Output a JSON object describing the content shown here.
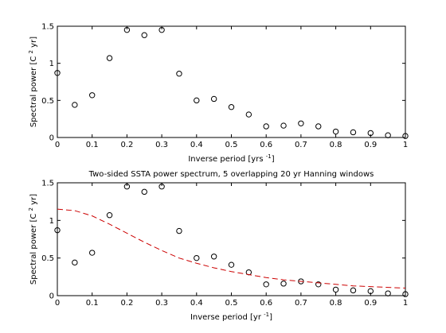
{
  "chart_data": [
    {
      "type": "scatter",
      "title": "",
      "xlabel": "Inverse period [yrs",
      "xlabel_sup": "-1",
      "xlabel_end": "]",
      "ylabel": "Spectral power [C",
      "ylabel_sup": "2",
      "ylabel_end": " yr]",
      "xlim": [
        0,
        1
      ],
      "ylim": [
        0,
        1.5
      ],
      "xticks": [
        0,
        0.1,
        0.2,
        0.3,
        0.4,
        0.5,
        0.6,
        0.7,
        0.8,
        0.9,
        1
      ],
      "xtick_labels": [
        "0",
        "0.1",
        "0.2",
        "0.3",
        "0.4",
        "0.5",
        "0.6",
        "0.7",
        "0.8",
        "0.9",
        "1"
      ],
      "yticks": [
        0,
        0.5,
        1,
        1.5
      ],
      "ytick_labels": [
        "0",
        "0.5",
        "1",
        "1.5"
      ],
      "grid": false,
      "series": [
        {
          "marker": "circle",
          "x": [
            0,
            0.05,
            0.1,
            0.15,
            0.2,
            0.25,
            0.3,
            0.35,
            0.4,
            0.45,
            0.5,
            0.55,
            0.6,
            0.65,
            0.7,
            0.75,
            0.8,
            0.85,
            0.9,
            0.95,
            1
          ],
          "y": [
            0.87,
            0.44,
            0.57,
            1.07,
            1.45,
            1.38,
            1.45,
            0.86,
            0.5,
            0.52,
            0.41,
            0.31,
            0.15,
            0.16,
            0.19,
            0.15,
            0.08,
            0.07,
            0.06,
            0.03,
            0.02
          ]
        }
      ]
    },
    {
      "type": "scatter",
      "title": "Two-sided SSTA power spectrum, 5 overlapping 20 yr Hanning windows",
      "xlabel": "Inverse period [yr",
      "xlabel_sup": "-1",
      "xlabel_end": "]",
      "ylabel": "Spectral power [C",
      "ylabel_sup": "2",
      "ylabel_end": " yr]",
      "xlim": [
        0,
        1
      ],
      "ylim": [
        0,
        1.5
      ],
      "xticks": [
        0,
        0.1,
        0.2,
        0.3,
        0.4,
        0.5,
        0.6,
        0.7,
        0.8,
        0.9,
        1
      ],
      "xtick_labels": [
        "0",
        "0.1",
        "0.2",
        "0.3",
        "0.4",
        "0.5",
        "0.6",
        "0.7",
        "0.8",
        "0.9",
        "1"
      ],
      "yticks": [
        0,
        0.5,
        1,
        1.5
      ],
      "ytick_labels": [
        "0",
        "0.5",
        "1",
        "1.5"
      ],
      "grid": false,
      "series": [
        {
          "marker": "circle",
          "x": [
            0,
            0.05,
            0.1,
            0.15,
            0.2,
            0.25,
            0.3,
            0.35,
            0.4,
            0.45,
            0.5,
            0.55,
            0.6,
            0.65,
            0.7,
            0.75,
            0.8,
            0.85,
            0.9,
            0.95,
            1
          ],
          "y": [
            0.87,
            0.44,
            0.57,
            1.07,
            1.45,
            1.38,
            1.45,
            0.86,
            0.5,
            0.52,
            0.41,
            0.31,
            0.15,
            0.16,
            0.19,
            0.15,
            0.08,
            0.07,
            0.06,
            0.03,
            0.02
          ]
        },
        {
          "line": "dashed",
          "color": "#cc0000",
          "x": [
            0,
            0.05,
            0.1,
            0.15,
            0.2,
            0.25,
            0.3,
            0.35,
            0.4,
            0.45,
            0.5,
            0.55,
            0.6,
            0.65,
            0.7,
            0.75,
            0.8,
            0.85,
            0.9,
            0.95,
            1
          ],
          "y": [
            1.15,
            1.13,
            1.06,
            0.95,
            0.83,
            0.71,
            0.6,
            0.5,
            0.43,
            0.37,
            0.32,
            0.28,
            0.24,
            0.21,
            0.19,
            0.17,
            0.15,
            0.13,
            0.12,
            0.11,
            0.1
          ]
        }
      ]
    }
  ]
}
